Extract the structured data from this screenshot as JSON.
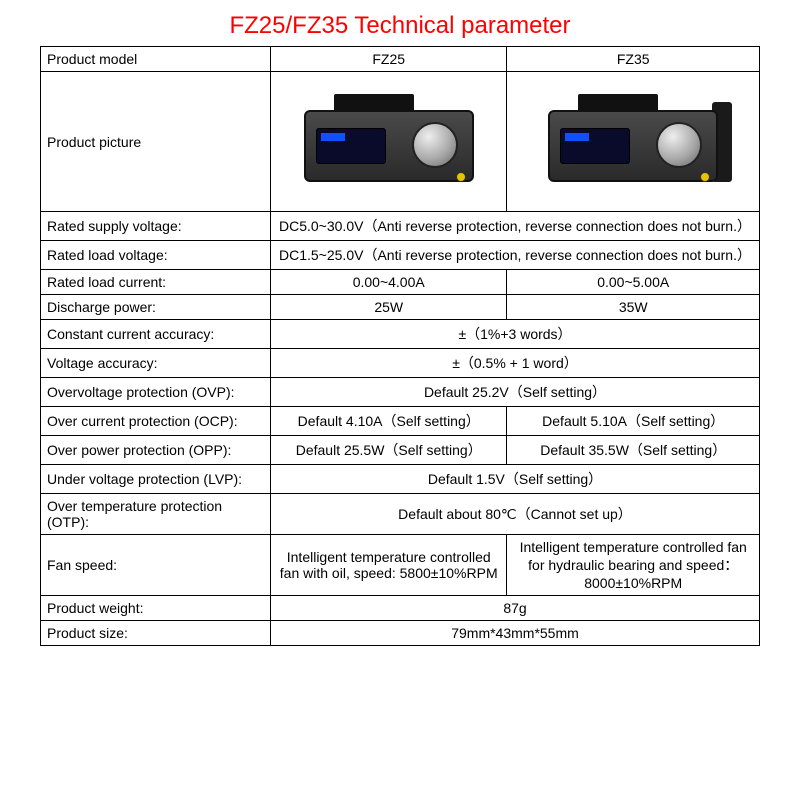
{
  "title": {
    "text": "FZ25/FZ35 Technical parameter",
    "color": "#ff0000",
    "fontsize": 24
  },
  "table": {
    "border_color": "#000000",
    "text_color": "#000000",
    "fontsize": 14,
    "label_col_width": 230,
    "total_width": 720
  },
  "header": {
    "model_label": "Product model",
    "col1": "FZ25",
    "col2": "FZ35"
  },
  "picture": {
    "label": "Product picture",
    "device_body_color": "#3a3a3a",
    "screen_color": "#0a0a2a",
    "knob_color": "#bfbfbf",
    "jack_color": "#e6c200"
  },
  "rows": {
    "supply_voltage": {
      "label": "Rated supply voltage:",
      "merged": "DC5.0~30.0V（Anti reverse protection, reverse connection does not burn.）"
    },
    "load_voltage": {
      "label": "Rated load voltage:",
      "merged": "DC1.5~25.0V（Anti reverse protection, reverse connection does not burn.）"
    },
    "load_current": {
      "label": "Rated load current:",
      "col1": "0.00~4.00A",
      "col2": "0.00~5.00A"
    },
    "discharge_power": {
      "label": "Discharge power:",
      "col1": "25W",
      "col2": "35W"
    },
    "cc_accuracy": {
      "label": "Constant current accuracy:",
      "merged": "±（1%+3 words）"
    },
    "v_accuracy": {
      "label": "Voltage accuracy:",
      "merged": "±（0.5% + 1 word）"
    },
    "ovp": {
      "label": "Overvoltage protection (OVP):",
      "merged": "Default 25.2V（Self setting）"
    },
    "ocp": {
      "label": "Over current protection (OCP):",
      "col1": "Default 4.10A（Self setting）",
      "col2": "Default 5.10A（Self setting）"
    },
    "opp": {
      "label": "Over power protection (OPP):",
      "col1": "Default 25.5W（Self setting）",
      "col2": "Default 35.5W（Self setting）"
    },
    "lvp": {
      "label": "Under voltage protection (LVP):",
      "merged": "Default 1.5V（Self setting）"
    },
    "otp": {
      "label": "Over temperature protection (OTP):",
      "merged": "Default  about 80℃（Cannot set up）"
    },
    "fan": {
      "label": "Fan speed:",
      "col1": "Intelligent temperature controlled fan with oil, speed: 5800±10%RPM",
      "col2": "Intelligent temperature controlled fan for hydraulic bearing and speed：8000±10%RPM"
    },
    "weight": {
      "label": "Product weight:",
      "merged": "87g"
    },
    "size": {
      "label": "Product size:",
      "merged": "79mm*43mm*55mm"
    }
  }
}
